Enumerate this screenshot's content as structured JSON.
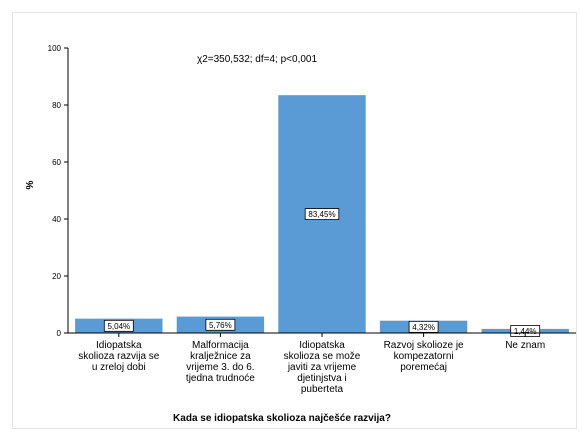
{
  "chart_data": {
    "type": "bar",
    "annotation": "χ2=350,532; df=4; p<0,001",
    "xlabel": "Kada se idiopatska skolioza najčešće razvija?",
    "ylabel": "%",
    "ylim": [
      0,
      100
    ],
    "yticks": [
      0,
      20,
      40,
      60,
      80,
      100
    ],
    "grid": false,
    "bar_color": "#5b9bd5",
    "categories": [
      [
        "Idiopatska",
        "skolioza razvija se",
        "u zreloj dobi"
      ],
      [
        "Malformacija",
        "kralježnice za",
        "vrijeme 3. do 6.",
        "tjedna trudnoće"
      ],
      [
        "Idiopatska",
        "skolioza se može",
        "javiti za vrijeme",
        "djetinjstva i",
        "puberteta"
      ],
      [
        "Razvoj skolioze je",
        "kompezatorni",
        "poremećaj"
      ],
      [
        "Ne znam"
      ]
    ],
    "values": [
      5.04,
      5.76,
      83.45,
      4.32,
      1.44
    ],
    "data_labels": [
      "5,04%",
      "5,76%",
      "83,45%",
      "4,32%",
      "1,44%"
    ]
  }
}
